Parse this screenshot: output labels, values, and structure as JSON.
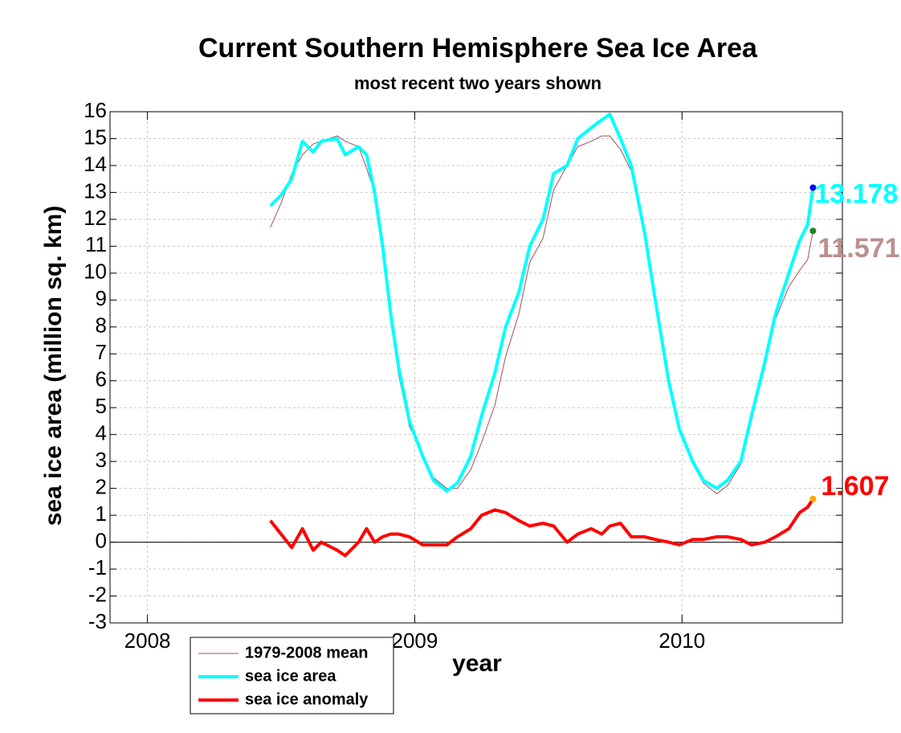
{
  "chart_data": {
    "type": "line",
    "title": "Current Southern Hemisphere Sea Ice Area",
    "subtitle": "most recent two years shown",
    "x_label": "year",
    "y_label": "sea ice area (million sq. km)",
    "x": [
      2008.46,
      2008.5,
      2008.54,
      2008.58,
      2008.62,
      2008.65,
      2008.71,
      2008.74,
      2008.79,
      2008.82,
      2008.85,
      2008.88,
      2008.91,
      2008.94,
      2008.98,
      2009.03,
      2009.07,
      2009.12,
      2009.16,
      2009.21,
      2009.25,
      2009.3,
      2009.34,
      2009.39,
      2009.43,
      2009.48,
      2009.52,
      2009.57,
      2009.61,
      2009.66,
      2009.7,
      2009.73,
      2009.77,
      2009.81,
      2009.86,
      2009.9,
      2009.95,
      2009.99,
      2010.04,
      2010.08,
      2010.13,
      2010.17,
      2010.22,
      2010.26,
      2010.31,
      2010.35,
      2010.4,
      2010.44,
      2010.47,
      2010.49
    ],
    "series": [
      {
        "name": "1979-2008 mean",
        "color": "#a05060",
        "width": 1,
        "marker_color": "#1a8a1a",
        "label_color": "#bc8f8f",
        "values": [
          11.7,
          12.6,
          13.7,
          14.4,
          14.8,
          14.9,
          15.1,
          14.9,
          14.7,
          13.9,
          13.0,
          10.8,
          8.2,
          6.2,
          4.3,
          3.3,
          2.4,
          2.0,
          2.0,
          2.7,
          3.7,
          5.1,
          6.9,
          8.5,
          10.4,
          11.3,
          13.1,
          14.0,
          14.7,
          14.9,
          15.1,
          15.1,
          14.6,
          13.8,
          11.3,
          8.9,
          6.0,
          4.3,
          2.9,
          2.2,
          1.8,
          2.1,
          2.9,
          4.8,
          6.7,
          8.3,
          9.5,
          10.1,
          10.5,
          11.571
        ]
      },
      {
        "name": "sea ice area",
        "color": "#00ffff",
        "width": 4,
        "marker_color": "#0000ff",
        "label_color": "#00ffff",
        "values": [
          12.5,
          12.9,
          13.5,
          14.9,
          14.5,
          14.9,
          15.0,
          14.4,
          14.7,
          14.4,
          13.0,
          11.0,
          8.5,
          6.5,
          4.5,
          3.2,
          2.3,
          1.9,
          2.2,
          3.2,
          4.7,
          6.3,
          8.0,
          9.3,
          11.0,
          12.0,
          13.7,
          14.0,
          15.0,
          15.4,
          15.7,
          15.9,
          15.0,
          14.0,
          11.5,
          9.0,
          6.0,
          4.2,
          3.0,
          2.3,
          2.0,
          2.3,
          3.0,
          4.7,
          6.7,
          8.5,
          10.0,
          11.2,
          11.8,
          13.178
        ]
      },
      {
        "name": "sea ice anomaly",
        "color": "#ff0000",
        "width": 4,
        "marker_color": "#ffa500",
        "label_color": "#ff0000",
        "values": [
          0.8,
          0.3,
          -0.2,
          0.5,
          -0.3,
          0.0,
          -0.3,
          -0.5,
          0.0,
          0.5,
          0.0,
          0.2,
          0.3,
          0.3,
          0.2,
          -0.1,
          -0.1,
          -0.1,
          0.2,
          0.5,
          1.0,
          1.2,
          1.1,
          0.8,
          0.6,
          0.7,
          0.6,
          0.0,
          0.3,
          0.5,
          0.3,
          0.6,
          0.7,
          0.2,
          0.2,
          0.1,
          0.0,
          -0.1,
          0.1,
          0.1,
          0.2,
          0.2,
          0.1,
          -0.1,
          0.0,
          0.2,
          0.5,
          1.1,
          1.3,
          1.607
        ]
      }
    ],
    "xlim": [
      2007.86,
      2010.6
    ],
    "xticks": [
      2008,
      2009,
      2010
    ],
    "ylim": [
      -3,
      16
    ],
    "yticks": [
      -3,
      -2,
      -1,
      0,
      1,
      2,
      3,
      4,
      5,
      6,
      7,
      8,
      9,
      10,
      11,
      12,
      13,
      14,
      15,
      16
    ],
    "grid": true,
    "zero_line": true,
    "legend": "bottom-left-outside"
  }
}
